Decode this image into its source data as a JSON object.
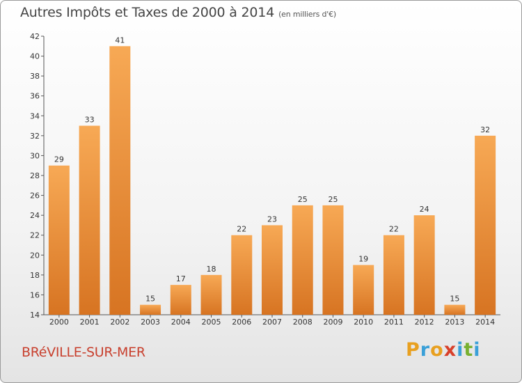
{
  "chart_data": {
    "type": "bar",
    "title": "Autres Impôts et Taxes de 2000 à 2014",
    "subtitle": "(en milliers d'€)",
    "categories": [
      "2000",
      "2001",
      "2002",
      "2003",
      "2004",
      "2005",
      "2006",
      "2007",
      "2008",
      "2009",
      "2010",
      "2011",
      "2012",
      "2013",
      "2014"
    ],
    "values": [
      29,
      33,
      41,
      15,
      17,
      18,
      22,
      23,
      25,
      25,
      19,
      22,
      24,
      15,
      32
    ],
    "xlabel": "",
    "ylabel": "",
    "ylim": [
      14,
      42
    ],
    "yticks": [
      14,
      16,
      18,
      20,
      22,
      24,
      26,
      28,
      30,
      32,
      34,
      36,
      38,
      40,
      42
    ],
    "grid": false,
    "bar_color": "#f0a050",
    "bar_color_dark": "#d8782a"
  },
  "footer": {
    "commune": "BRéVILLE-SUR-MER",
    "logo": {
      "letters": [
        "P",
        "r",
        "o",
        "x",
        "i",
        "t",
        "i"
      ],
      "colors": [
        "#e8a020",
        "#3aa0d8",
        "#e8a020",
        "#d8402a",
        "#3aa0d8",
        "#78b030",
        "#3aa0d8"
      ]
    }
  }
}
